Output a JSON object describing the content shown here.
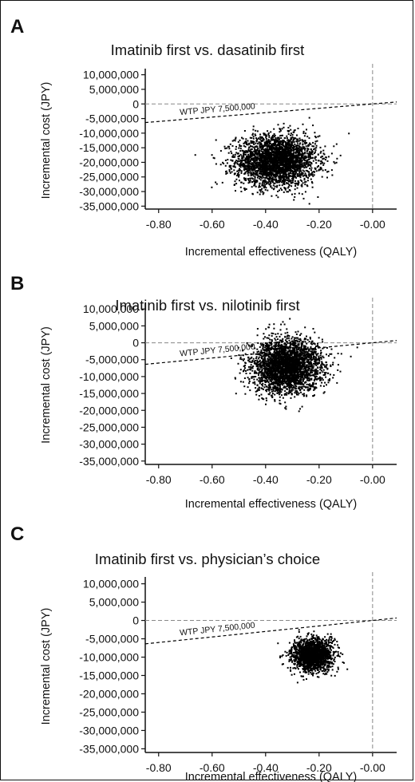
{
  "chart_data": [
    {
      "type": "scatter",
      "panel": "A",
      "title": "Imatinib first vs. dasatinib first",
      "xlabel": "Incremental effectiveness (QALY)",
      "ylabel": "Incremental cost (JPY)",
      "xlim": [
        -0.85,
        0.09
      ],
      "ylim": [
        -36000000,
        11000000
      ],
      "xticks": [
        -0.8,
        -0.6,
        -0.4,
        -0.2,
        0.0
      ],
      "xtick_labels": [
        "-0.80",
        "-0.60",
        "-0.40",
        "-0.20",
        "-0.00"
      ],
      "yticks": [
        10000000,
        5000000,
        0,
        -5000000,
        -10000000,
        -15000000,
        -20000000,
        -25000000,
        -30000000,
        -35000000
      ],
      "ytick_labels": [
        "10,000,000",
        "5,000,000",
        "0",
        "-5,000,000",
        "-10,000,000",
        "-15,000,000",
        "-20,000,000",
        "-25,000,000",
        "-30,000,000",
        "-35,000,000"
      ],
      "wtp_label": "WTP JPY 7,500,000",
      "wtp_slope": 7500000,
      "cloud": {
        "x_mean": -0.36,
        "x_sd": 0.075,
        "y_mean": -19500000,
        "y_sd": 4300000,
        "n": 3000
      }
    },
    {
      "type": "scatter",
      "panel": "B",
      "title": "Imatinib first vs. nilotinib first",
      "xlabel": "Incremental effectiveness (QALY)",
      "ylabel": "Incremental cost (JPY)",
      "xlim": [
        -0.85,
        0.09
      ],
      "ylim": [
        -36000000,
        11000000
      ],
      "xticks": [
        -0.8,
        -0.6,
        -0.4,
        -0.2,
        0.0
      ],
      "xtick_labels": [
        "-0.80",
        "-0.60",
        "-0.40",
        "-0.20",
        "-0.00"
      ],
      "yticks": [
        10000000,
        5000000,
        0,
        -5000000,
        -10000000,
        -15000000,
        -20000000,
        -25000000,
        -30000000,
        -35000000
      ],
      "ytick_labels": [
        "10,000,000",
        "5,000,000",
        "0",
        "-5,000,000",
        "-10,000,000",
        "-15,000,000",
        "-20,000,000",
        "-25,000,000",
        "-30,000,000",
        "-35,000,000"
      ],
      "wtp_label": "WTP JPY 7,500,000",
      "wtp_slope": 7500000,
      "cloud": {
        "x_mean": -0.32,
        "x_sd": 0.065,
        "y_mean": -7000000,
        "y_sd": 4000000,
        "n": 3000
      }
    },
    {
      "type": "scatter",
      "panel": "C",
      "title": "Imatinib first vs. physician’s choice",
      "xlabel": "Incremental effectiveness (QALY)",
      "ylabel": "Incremental cost (JPY)",
      "xlim": [
        -0.85,
        0.09
      ],
      "ylim": [
        -36000000,
        11000000
      ],
      "xticks": [
        -0.8,
        -0.6,
        -0.4,
        -0.2,
        0.0
      ],
      "xtick_labels": [
        "-0.80",
        "-0.60",
        "-0.40",
        "-0.20",
        "-0.00"
      ],
      "yticks": [
        10000000,
        5000000,
        0,
        -5000000,
        -10000000,
        -15000000,
        -20000000,
        -25000000,
        -30000000,
        -35000000
      ],
      "ytick_labels": [
        "10,000,000",
        "5,000,000",
        "0",
        "-5,000,000",
        "-10,000,000",
        "-15,000,000",
        "-20,000,000",
        "-25,000,000",
        "-30,000,000",
        "-35,000,000"
      ],
      "wtp_label": "WTP JPY 7,500,000",
      "wtp_slope": 7500000,
      "cloud": {
        "x_mean": -0.225,
        "x_sd": 0.038,
        "y_mean": -9500000,
        "y_sd": 2200000,
        "n": 1800
      }
    }
  ],
  "colors": {
    "points": "#000000",
    "dash_zero": "#888888",
    "wtp_line": "#000000"
  }
}
